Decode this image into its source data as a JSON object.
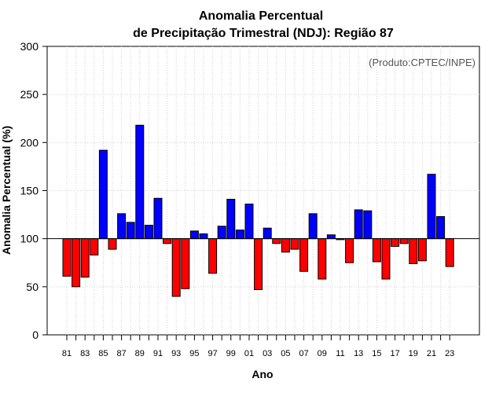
{
  "chart_data": {
    "type": "bar",
    "title_line1": "Anomalia Percentual",
    "title_line2": "de Precipitação Trimestral (NDJ): Região 87",
    "xlabel": "Ano",
    "ylabel": "Anomalia Percentual (%)",
    "source": "(Produto:CPTEC/INPE)",
    "ylim": [
      0,
      300
    ],
    "yticks": [
      0,
      50,
      100,
      150,
      200,
      250,
      300
    ],
    "baseline": 100,
    "grid": true,
    "colors": {
      "above": "#0000ff",
      "below": "#ff0000",
      "edge": "#000000"
    },
    "categories": [
      "81",
      "82",
      "83",
      "84",
      "85",
      "86",
      "87",
      "88",
      "89",
      "90",
      "91",
      "92",
      "93",
      "94",
      "95",
      "96",
      "97",
      "98",
      "99",
      "00",
      "01",
      "02",
      "03",
      "04",
      "05",
      "06",
      "07",
      "08",
      "09",
      "10",
      "11",
      "12",
      "13",
      "14",
      "15",
      "16",
      "17",
      "18",
      "19",
      "20",
      "21",
      "22",
      "23"
    ],
    "tick_labels": [
      "81",
      "83",
      "85",
      "87",
      "89",
      "91",
      "93",
      "95",
      "97",
      "99",
      "01",
      "03",
      "05",
      "07",
      "09",
      "11",
      "13",
      "15",
      "17",
      "19",
      "21",
      "23"
    ],
    "values": [
      61,
      50,
      60,
      83,
      192,
      89,
      126,
      117,
      218,
      114,
      142,
      95,
      40,
      48,
      108,
      105,
      64,
      113,
      141,
      109,
      136,
      47,
      111,
      95,
      86,
      89,
      66,
      126,
      58,
      104,
      99,
      75,
      130,
      129,
      76,
      58,
      92,
      95,
      74,
      77,
      167,
      123,
      71
    ]
  }
}
